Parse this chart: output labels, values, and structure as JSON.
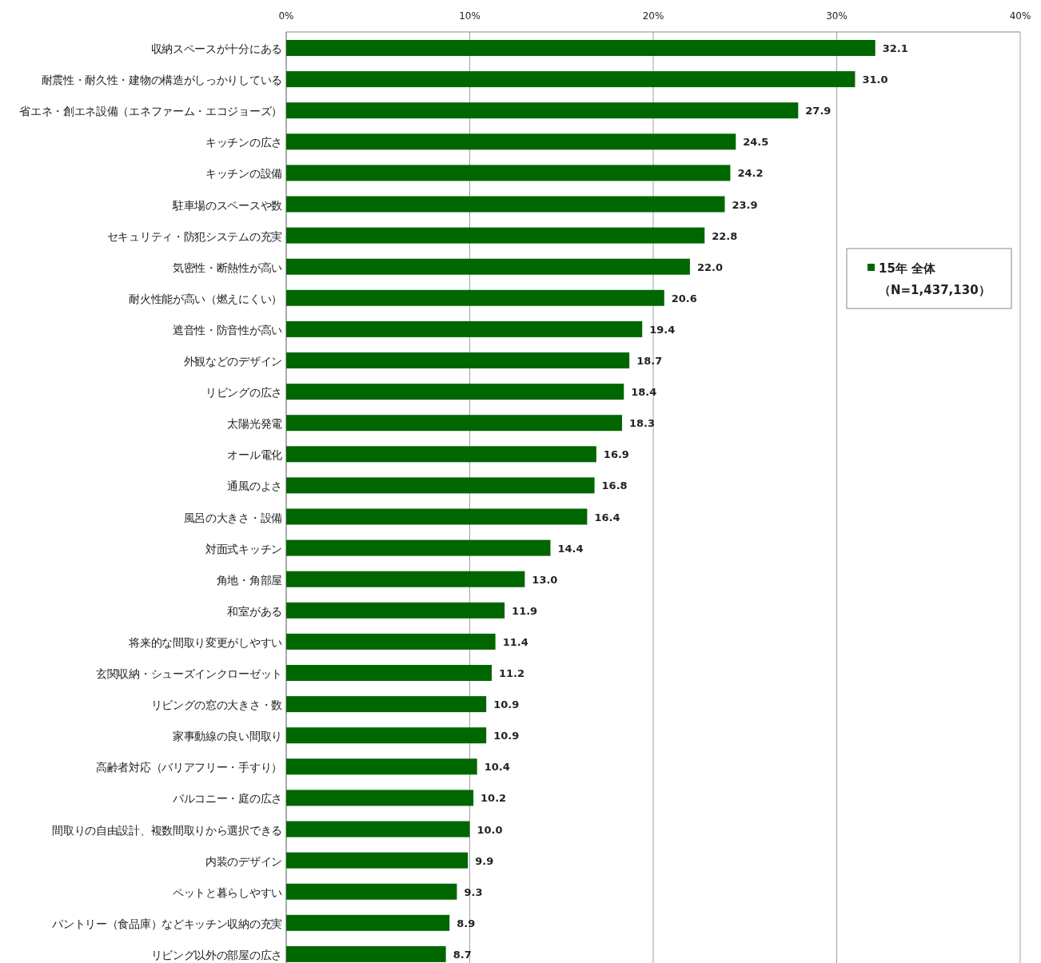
{
  "chart_data": {
    "type": "bar",
    "orientation": "horizontal",
    "categories": [
      "収納スペースが十分にある",
      "耐震性・耐久性・建物の構造がしっかりしている",
      "省エネ・創エネ設備（エネファーム・エコジョーズ）",
      "キッチンの広さ",
      "キッチンの設備",
      "駐車場のスペースや数",
      "セキュリティ・防犯システムの充実",
      "気密性・断熱性が高い",
      "耐火性能が高い（燃えにくい）",
      "遮音性・防音性が高い",
      "外観などのデザイン",
      "リビングの広さ",
      "太陽光発電",
      "オール電化",
      "通風のよさ",
      "風呂の大きさ・設備",
      "対面式キッチン",
      "角地・角部屋",
      "和室がある",
      "将来的な間取り変更がしやすい",
      "玄関収納・シューズインクローゼット",
      "リビングの窓の大きさ・数",
      "家事動線の良い間取り",
      "高齢者対応（バリアフリー・手すり）",
      "バルコニー・庭の広さ",
      "間取りの自由設計、複数間取りから選択できる",
      "内装のデザイン",
      "ペットと暮らしやすい",
      "パントリー（食品庫）などキッチン収納の充実",
      "リビング以外の部屋の広さ"
    ],
    "series": [
      {
        "name": "15年 全体（N=1,437,130）",
        "color": "#006600",
        "values": [
          32.1,
          31.0,
          27.9,
          24.5,
          24.2,
          23.9,
          22.8,
          22.0,
          20.6,
          19.4,
          18.7,
          18.4,
          18.3,
          16.9,
          16.8,
          16.4,
          14.4,
          13.0,
          11.9,
          11.4,
          11.2,
          10.9,
          10.9,
          10.4,
          10.2,
          10.0,
          9.9,
          9.3,
          8.9,
          8.7
        ],
        "value_labels": [
          "32.1",
          "31.0",
          "27.9",
          "24.5",
          "24.2",
          "23.9",
          "22.8",
          "22.0",
          "20.6",
          "19.4",
          "18.7",
          "18.4",
          "18.3",
          "16.9",
          "16.8",
          "16.4",
          "14.4",
          "13.0",
          "11.9",
          "11.4",
          "11.2",
          "10.9",
          "10.9",
          "10.4",
          "10.2",
          "10.0",
          "9.9",
          "9.3",
          "8.9",
          "8.7"
        ]
      }
    ],
    "xlim": [
      0,
      40
    ],
    "xticks": [
      {
        "value": 0,
        "label": "0%"
      },
      {
        "value": 10,
        "label": "10%"
      },
      {
        "value": 20,
        "label": "20%"
      },
      {
        "value": 30,
        "label": "30%"
      },
      {
        "value": 40,
        "label": "40%"
      }
    ],
    "grid": "x",
    "legend": "right"
  }
}
